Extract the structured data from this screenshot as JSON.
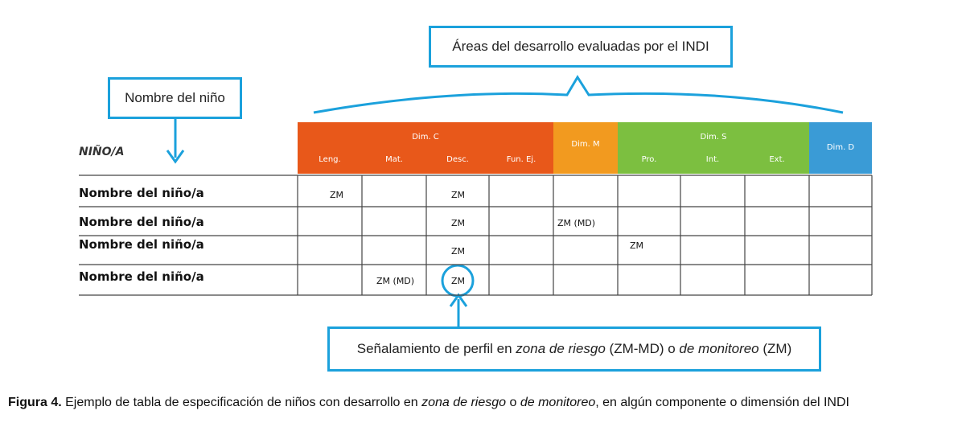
{
  "callouts": {
    "areas": "Áreas del desarrollo evaluadas por el INDI",
    "nombre": "Nombre del niño",
    "senalamiento_a": "Señalamiento de perfil en ",
    "senalamiento_b": "zona de riesgo",
    "senalamiento_c": " (ZM-MD) o ",
    "senalamiento_d": "de monitoreo",
    "senalamiento_e": " (ZM)"
  },
  "table": {
    "nino_header": "NIÑO/A",
    "dimensions": [
      {
        "label": "Dim. C",
        "color": "#e8581a"
      },
      {
        "label": "Dim. M",
        "color": "#f29a1f"
      },
      {
        "label": "Dim. S",
        "color": "#7cbf40"
      },
      {
        "label": "Dim. D",
        "color": "#3a9bd6"
      }
    ],
    "subheaders": [
      "Leng.",
      "Mat.",
      "Desc.",
      "Fun. Ej.",
      "",
      "Pro.",
      "Int.",
      "Ext.",
      ""
    ],
    "rows": [
      {
        "name": "Nombre del niño/a",
        "cells": [
          "ZM",
          "",
          "ZM",
          "",
          "",
          "",
          "",
          "",
          ""
        ]
      },
      {
        "name": "Nombre del niño/a",
        "cells": [
          "",
          "",
          "ZM",
          "",
          "ZM (MD)",
          "",
          "",
          "",
          ""
        ]
      },
      {
        "name": "Nombre del niño/a",
        "cells": [
          "",
          "",
          "ZM",
          "",
          "",
          "ZM",
          "",
          "",
          ""
        ]
      },
      {
        "name": "Nombre del niño/a",
        "cells": [
          "",
          "ZM (MD)",
          "ZM",
          "",
          "",
          "",
          "",
          "",
          ""
        ]
      }
    ]
  },
  "caption": {
    "label": "Figura 4.",
    "text_a": " Ejemplo de tabla de especificación de niños con desarrollo en ",
    "text_b": "zona de riesgo",
    "text_c": " o ",
    "text_d": "de monitoreo",
    "text_e": ", en algún componente o dimensión del INDI"
  },
  "colors": {
    "accent": "#1ba1dc"
  }
}
